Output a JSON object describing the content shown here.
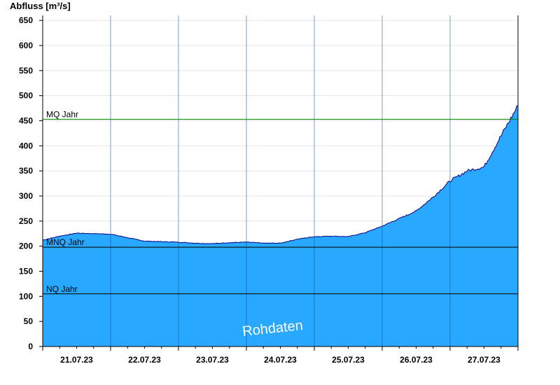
{
  "chart_data": {
    "type": "area",
    "ylabel": "Abfluss [m³/s]",
    "ylim": [
      0,
      660
    ],
    "y_ticks": [
      0,
      50,
      100,
      150,
      200,
      250,
      300,
      350,
      400,
      450,
      500,
      550,
      600,
      650
    ],
    "x_start": "21.07.23",
    "x_days": 7,
    "x_tick_labels": [
      "21.07.23",
      "22.07.23",
      "23.07.23",
      "24.07.23",
      "25.07.23",
      "26.07.23",
      "27.07.23"
    ],
    "grid": true,
    "area_color": "#29a8ff",
    "line_color": "#00008b",
    "reference_lines": [
      {
        "label": "MQ Jahr",
        "value": 453,
        "color": "#008000"
      },
      {
        "label": "MNQ Jahr",
        "value": 198,
        "color": "#000000"
      },
      {
        "label": "NQ Jahr",
        "value": 105,
        "color": "#000000"
      }
    ],
    "watermark": "Rohdaten",
    "series": [
      {
        "x": [
          "21.07.23 00:00",
          "21.07.23 06:00",
          "21.07.23 12:00",
          "21.07.23 18:00",
          "22.07.23 00:00",
          "22.07.23 06:00",
          "22.07.23 12:00",
          "22.07.23 18:00",
          "23.07.23 00:00",
          "23.07.23 06:00",
          "23.07.23 12:00",
          "23.07.23 18:00",
          "24.07.23 00:00",
          "24.07.23 06:00",
          "24.07.23 12:00",
          "24.07.23 18:00",
          "25.07.23 00:00",
          "25.07.23 06:00",
          "25.07.23 12:00",
          "25.07.23 18:00",
          "26.07.23 00:00",
          "26.07.23 06:00",
          "26.07.23 12:00",
          "26.07.23 18:00",
          "27.07.23 00:00",
          "27.07.23 06:00",
          "27.07.23 12:00",
          "27.07.23 18:00",
          "28.07.23 00:00"
        ],
        "values": [
          212,
          220,
          226,
          225,
          224,
          217,
          210,
          209,
          208,
          206,
          205,
          207,
          208,
          206,
          206,
          214,
          219,
          220,
          219,
          227,
          240,
          255,
          270,
          298,
          330,
          350,
          358,
          420,
          480
        ]
      }
    ]
  }
}
